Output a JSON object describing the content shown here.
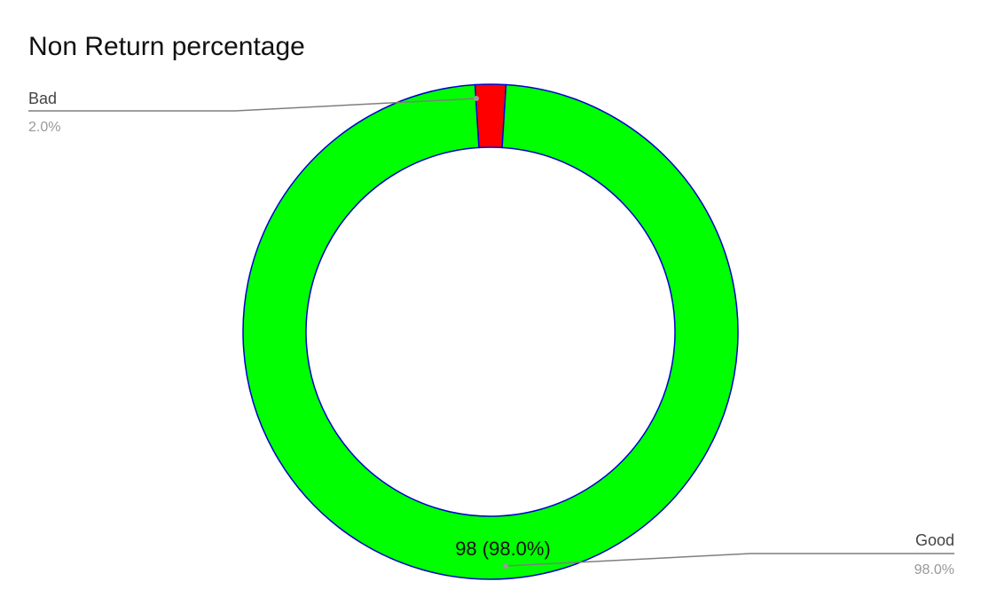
{
  "chart_data": {
    "type": "pie",
    "title": "Non Return percentage",
    "donut": true,
    "slices": [
      {
        "label": "Good",
        "value": 98,
        "percent": "98.0%",
        "color": "#00ff00",
        "data_label": "98 (98.0%)"
      },
      {
        "label": "Bad",
        "value": 2,
        "percent": "2.0%",
        "color": "#ff0000"
      }
    ],
    "slice_border_color": "#0000cc",
    "legend_placement": "leader-lines"
  }
}
